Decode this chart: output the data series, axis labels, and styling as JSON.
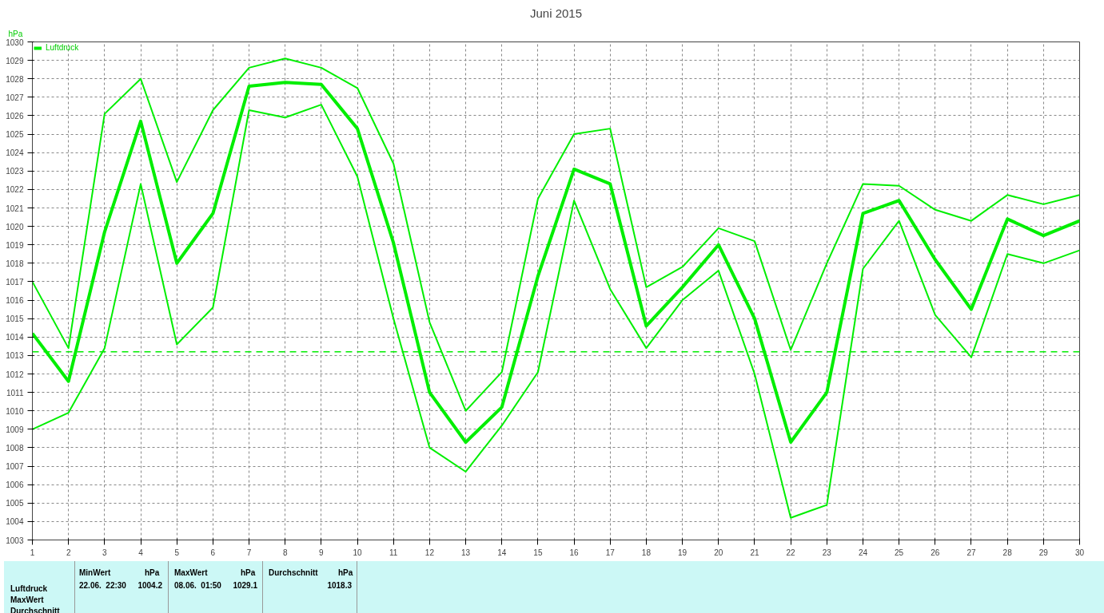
{
  "chart_data": {
    "type": "line",
    "title": "Juni 2015",
    "ylabel": "hPa",
    "x": [
      1,
      2,
      3,
      4,
      5,
      6,
      7,
      8,
      9,
      10,
      11,
      12,
      13,
      14,
      15,
      16,
      17,
      18,
      19,
      20,
      21,
      22,
      23,
      24,
      25,
      26,
      27,
      28,
      29,
      30
    ],
    "series": [
      {
        "color": "#00ee00",
        "values": [
          1017.0,
          1013.4,
          1026.1,
          1028.0,
          1022.4,
          1026.3,
          1028.6,
          1029.1,
          1028.6,
          1027.5,
          1023.4,
          1014.8,
          1010.0,
          1012.1,
          1021.5,
          1025.0,
          1025.3,
          1016.7,
          1017.8,
          1019.9,
          1019.2,
          1013.3,
          1018.0,
          1022.3,
          1022.2,
          1020.9,
          1020.3,
          1021.7,
          1021.2,
          1021.7
        ]
      },
      {
        "name": "Luftdruck",
        "color": "#00ee00",
        "values": [
          1014.2,
          1011.6,
          1019.7,
          1025.7,
          1018.0,
          1020.7,
          1027.6,
          1027.8,
          1027.7,
          1025.3,
          1019.1,
          1011.0,
          1008.3,
          1010.2,
          1017.3,
          1023.1,
          1022.3,
          1014.6,
          1016.7,
          1019.0,
          1015.0,
          1008.3,
          1011.0,
          1020.7,
          1021.4,
          1018.2,
          1015.5,
          1020.4,
          1019.5,
          1020.3
        ]
      },
      {
        "color": "#00ee00",
        "values": [
          1009.0,
          1009.9,
          1013.4,
          1022.3,
          1013.6,
          1015.6,
          1026.3,
          1025.9,
          1026.6,
          1022.7,
          1015.0,
          1008.0,
          1006.7,
          1009.2,
          1012.1,
          1021.4,
          1016.6,
          1013.4,
          1016.0,
          1017.6,
          1012.0,
          1004.2,
          1004.9,
          1017.7,
          1020.3,
          1015.2,
          1012.9,
          1018.5,
          1018.0,
          1018.7
        ]
      }
    ],
    "xlim": [
      1,
      30
    ],
    "xticks": [
      1,
      2,
      3,
      4,
      5,
      6,
      7,
      8,
      9,
      10,
      11,
      12,
      13,
      14,
      15,
      16,
      17,
      18,
      19,
      20,
      21,
      22,
      23,
      24,
      25,
      26,
      27,
      28,
      29,
      30
    ],
    "ylim": [
      1003,
      1030
    ],
    "yticks": [
      1003,
      1004,
      1005,
      1006,
      1007,
      1008,
      1009,
      1010,
      1011,
      1012,
      1013,
      1014,
      1015,
      1016,
      1017,
      1018,
      1019,
      1020,
      1021,
      1022,
      1023,
      1024,
      1025,
      1026,
      1027,
      1028,
      1029,
      1030
    ],
    "ref_lines": [
      {
        "axis": "y",
        "value": 1013.2,
        "color": "#00ee00",
        "line_style": "dashed"
      }
    ],
    "grid": true,
    "legend": "top left",
    "marker": "none",
    "line_style": "solid",
    "annotations": [
      "Luftdruck",
      "MaxWert",
      "Durchschnitt",
      "MinWert",
      "hPa",
      "22.06.  22:30",
      "1004.2",
      "MaxWert",
      "hPa",
      "08.06.  01:50",
      "1029.1",
      "Durchschnitt",
      "hPa",
      "1018.3"
    ]
  }
}
